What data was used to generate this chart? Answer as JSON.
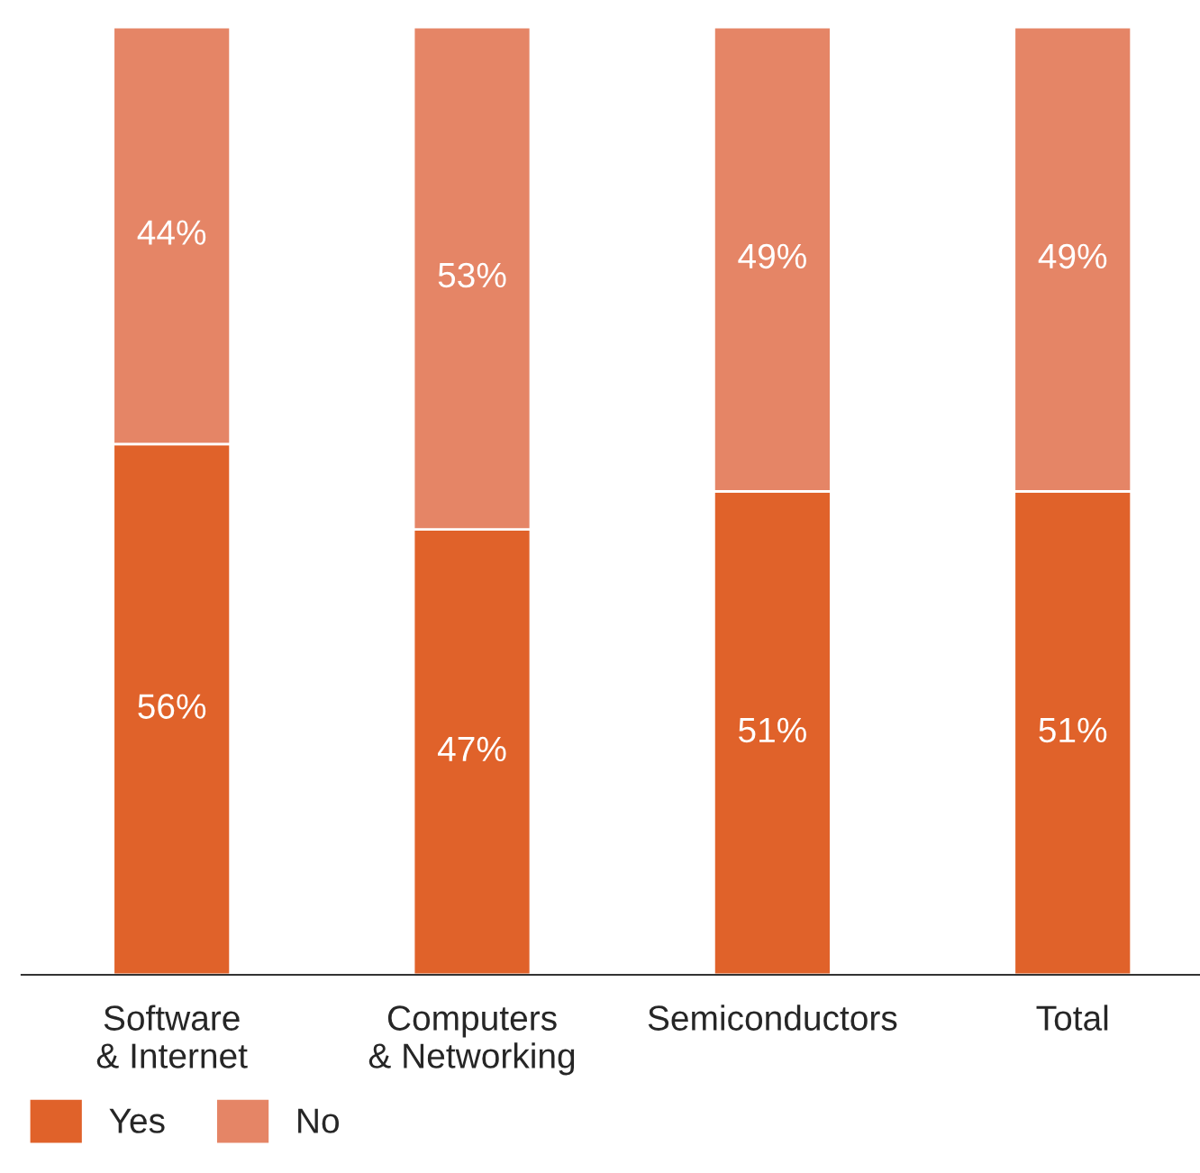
{
  "chart_data": {
    "type": "bar",
    "stacked": true,
    "legend": "bottom left",
    "categories": [
      "Software\n& Internet",
      "Computers\n& Networking",
      "Semiconductors",
      "Total"
    ],
    "series": [
      {
        "name": "Yes",
        "color": "#e0622a",
        "values": [
          56,
          47,
          51,
          51
        ],
        "value_labels": [
          "56%",
          "47%",
          "51%",
          "51%"
        ]
      },
      {
        "name": "No",
        "color": "#e58566",
        "values": [
          44,
          53,
          49,
          49
        ],
        "value_labels": [
          "44%",
          "53%",
          "49%",
          "49%"
        ]
      }
    ]
  }
}
